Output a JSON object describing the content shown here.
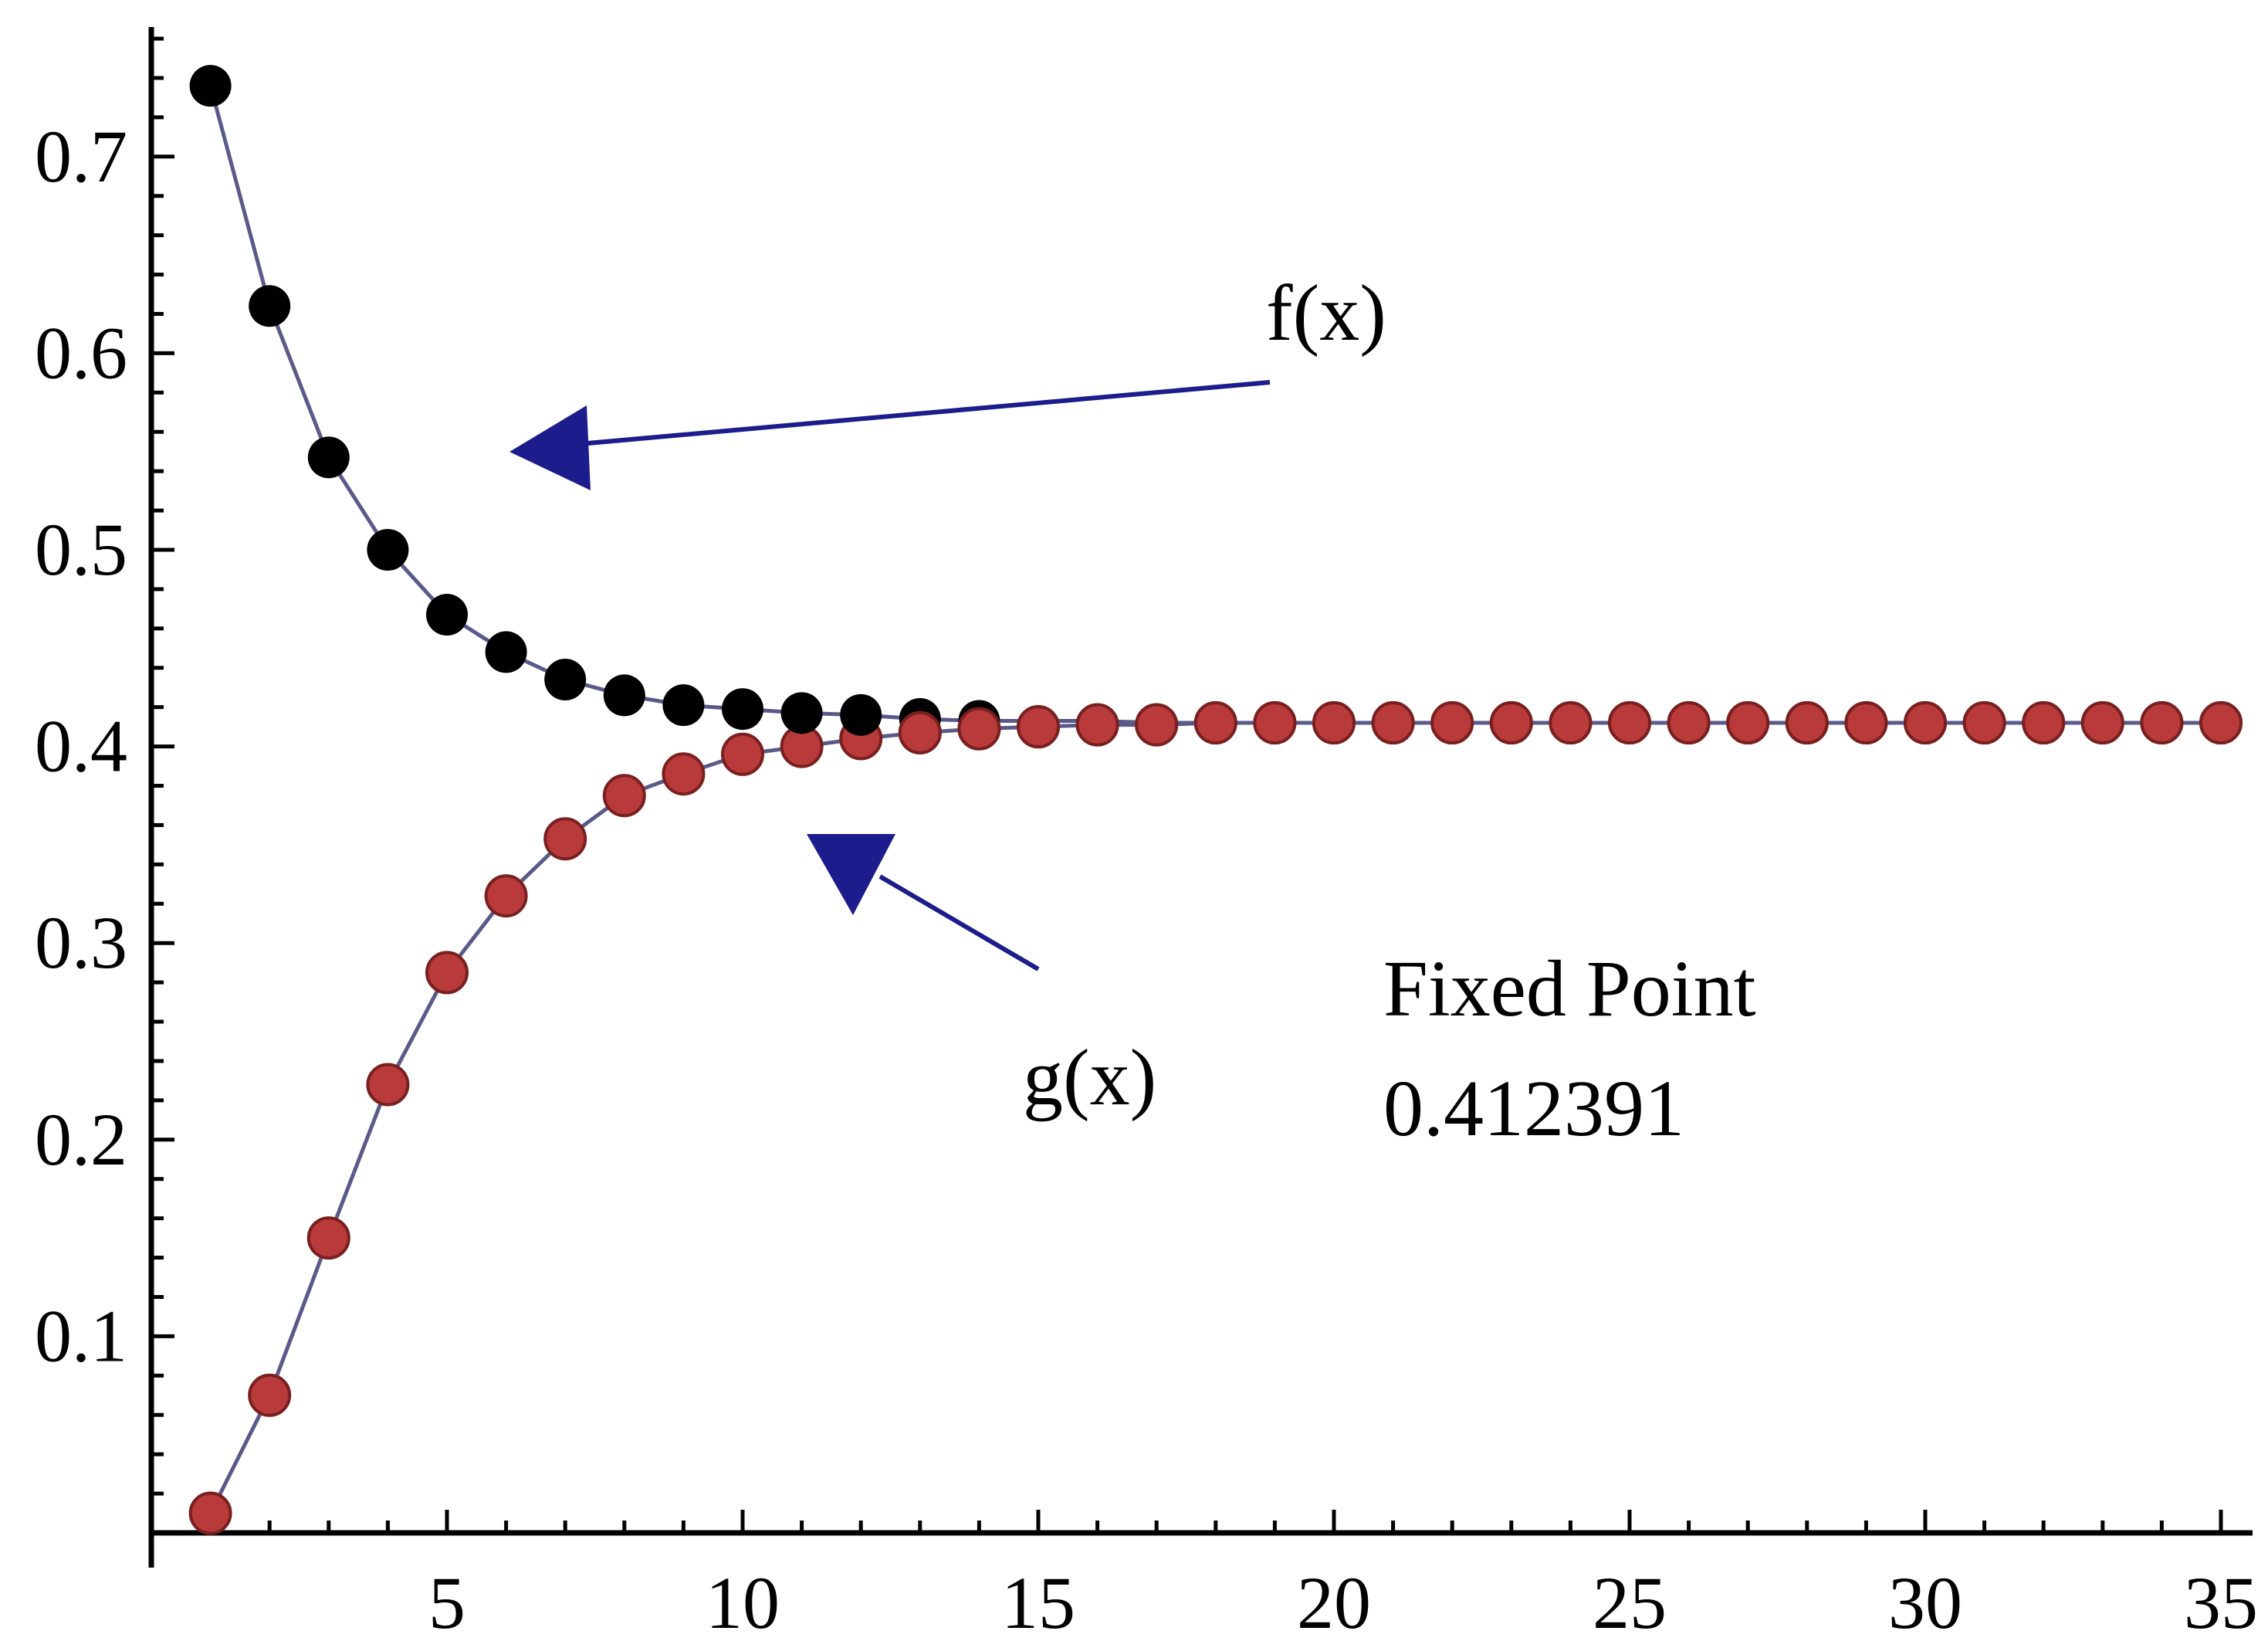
{
  "chart_data": {
    "type": "line",
    "title": "",
    "xlabel": "",
    "ylabel": "",
    "xlim": [
      0,
      35
    ],
    "ylim": [
      0,
      0.77
    ],
    "x_ticks": [
      5,
      10,
      15,
      20,
      25,
      30,
      35
    ],
    "y_ticks": [
      0.1,
      0.2,
      0.3,
      0.4,
      0.5,
      0.6,
      0.7
    ],
    "grid": false,
    "colors": {
      "axis": "#000000",
      "line": "#5a5a8a",
      "f_marker": "#000000",
      "g_marker": "#b83a3a",
      "g_marker_edge": "#7a1f1f",
      "arrow": "#1c1c8c"
    },
    "series": [
      {
        "name": "f(x)",
        "x": [
          1,
          2,
          3,
          4,
          5,
          6,
          7,
          8,
          9,
          10,
          11,
          12,
          13,
          14,
          15,
          16,
          17,
          18,
          19,
          20,
          21,
          22,
          23,
          24,
          25,
          26,
          27,
          28,
          29,
          30,
          31,
          32,
          33,
          34,
          35
        ],
        "values": [
          0.736,
          0.624,
          0.547,
          0.5,
          0.467,
          0.448,
          0.434,
          0.426,
          0.421,
          0.419,
          0.417,
          0.416,
          0.414,
          0.413,
          0.413,
          0.413,
          0.412,
          0.412,
          0.412,
          0.412,
          0.412,
          0.412,
          0.412,
          0.412,
          0.412,
          0.412,
          0.412,
          0.412,
          0.412,
          0.412,
          0.412,
          0.412,
          0.412,
          0.412,
          0.412
        ]
      },
      {
        "name": "g(x)",
        "x": [
          1,
          2,
          3,
          4,
          5,
          6,
          7,
          8,
          9,
          10,
          11,
          12,
          13,
          14,
          15,
          16,
          17,
          18,
          19,
          20,
          21,
          22,
          23,
          24,
          25,
          26,
          27,
          28,
          29,
          30,
          31,
          32,
          33,
          34,
          35
        ],
        "values": [
          0.01,
          0.07,
          0.15,
          0.228,
          0.285,
          0.324,
          0.353,
          0.375,
          0.386,
          0.396,
          0.4,
          0.404,
          0.407,
          0.409,
          0.41,
          0.411,
          0.411,
          0.412,
          0.412,
          0.412,
          0.412,
          0.412,
          0.412,
          0.412,
          0.412,
          0.412,
          0.412,
          0.412,
          0.412,
          0.412,
          0.412,
          0.412,
          0.412,
          0.412,
          0.412
        ]
      }
    ],
    "annotations": {
      "f_label": "f(x)",
      "g_label": "g(x)",
      "fixed_point_title": "Fixed Point",
      "fixed_point_value": "0.412391"
    }
  }
}
